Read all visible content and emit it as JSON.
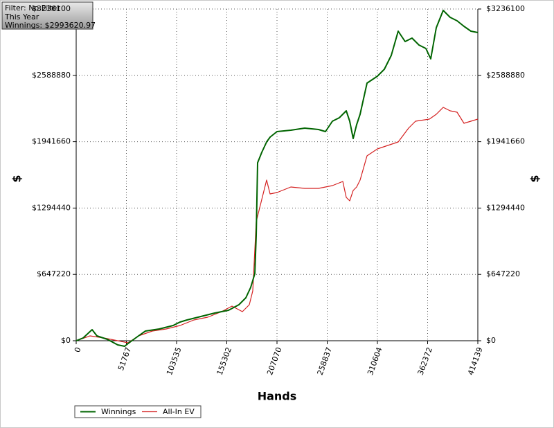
{
  "chart_data": {
    "type": "line",
    "info": [
      "Filter: No Filter",
      "This Year",
      "Winnings: $2993620.97"
    ],
    "x_label": "Hands",
    "y_label": "$",
    "xlim": [
      0,
      414139
    ],
    "xticks": [
      0,
      51767,
      103535,
      155302,
      207070,
      258837,
      310604,
      362372,
      414139
    ],
    "ylim": [
      0,
      3236100
    ],
    "yticks": [
      {
        "value": 0,
        "label": "$0"
      },
      {
        "value": 647220,
        "label": "$647220"
      },
      {
        "value": 1294440,
        "label": "$1294440"
      },
      {
        "value": 1941660,
        "label": "$1941660"
      },
      {
        "value": 2588880,
        "label": "$2588880"
      },
      {
        "value": 3236100,
        "label": "$3236100"
      }
    ],
    "grid": true,
    "legend": "bottom-left",
    "series": [
      {
        "name": "Winnings",
        "color": "#006400",
        "x": [
          0,
          7140,
          16423,
          21421,
          32131,
          42842,
          49982,
          53553,
          64263,
          71403,
          85684,
          99964,
          107105,
          114245,
          128525,
          142806,
          157086,
          167797,
          174937,
          179936,
          184220,
          185648,
          187076,
          191360,
          196358,
          199928,
          207069,
          221349,
          235630,
          249910,
          257050,
          264191,
          271331,
          278472,
          282042,
          285612,
          289182,
          292752,
          299893,
          310603,
          317744,
          324884,
          332024,
          339165,
          346305,
          353445,
          360585,
          365584,
          371296,
          378437,
          385577,
          392717,
          399858,
          406998,
          414139
        ],
        "values": [
          0,
          27024,
          108096,
          47292,
          13512,
          -40536,
          -54048,
          -27024,
          47292,
          94584,
          114852,
          148632,
          182412,
          202680,
          236460,
          270240,
          297264,
          351312,
          418872,
          520212,
          655332,
          1026912,
          1736292,
          1837632,
          1938972,
          1986264,
          2040312,
          2053824,
          2074092,
          2060580,
          2040312,
          2141652,
          2175432,
          2242992,
          2141652,
          1972752,
          2107872,
          2209212,
          2513232,
          2580792,
          2648352,
          2783472,
          3019932,
          2918592,
          2952372,
          2884812,
          2851032,
          2749692,
          3053712,
          3222612,
          3155052,
          3121272,
          3067224,
          3019932,
          3006420
        ]
      },
      {
        "name": "All-In EV",
        "color": "#d42020",
        "x": [
          0,
          14281,
          28561,
          42842,
          53553,
          64263,
          78543,
          92824,
          107105,
          121385,
          135666,
          149946,
          160657,
          171367,
          178508,
          182078,
          185648,
          189218,
          192788,
          196358,
          199928,
          207069,
          221349,
          235630,
          249910,
          264191,
          274901,
          278472,
          282042,
          285612,
          289182,
          292752,
          299893,
          310603,
          321313,
          332024,
          342734,
          349875,
          364155,
          371296,
          378437,
          385577,
          392717,
          399858,
          406998,
          414139
        ],
        "values": [
          0,
          47292,
          27024,
          0,
          -20268,
          47292,
          94584,
          114852,
          148632,
          202680,
          229704,
          283752,
          337800,
          283752,
          351312,
          486432,
          1162032,
          1297152,
          1432272,
          1567392,
          1432272,
          1445784,
          1499832,
          1486320,
          1486320,
          1513344,
          1553880,
          1398492,
          1364712,
          1466052,
          1499832,
          1567392,
          1803852,
          1871412,
          1905192,
          1938972,
          2074092,
          2141652,
          2161920,
          2209212,
          2276772,
          2242992,
          2229480,
          2121384,
          2141652,
          2161920
        ]
      }
    ]
  }
}
